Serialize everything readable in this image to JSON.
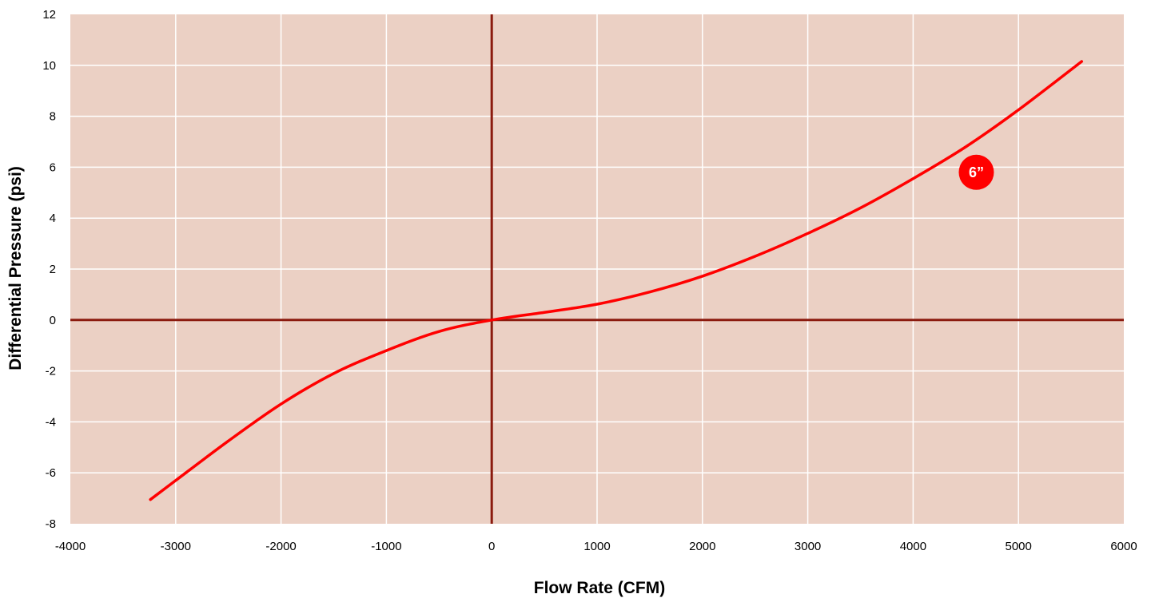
{
  "chart_data": {
    "type": "line",
    "title": "",
    "xlabel": "Flow Rate (CFM)",
    "ylabel": "Differential Pressure (psi)",
    "xlim": [
      -4000,
      6000
    ],
    "ylim": [
      -8,
      12
    ],
    "x_ticks": [
      -4000,
      -3000,
      -2000,
      -1000,
      0,
      1000,
      2000,
      3000,
      4000,
      5000,
      6000
    ],
    "y_ticks": [
      -8,
      -6,
      -4,
      -2,
      0,
      2,
      4,
      6,
      8,
      10,
      12
    ],
    "x_tick_labels": [
      "-4000",
      "-3000",
      "-2000",
      "-1000",
      "0",
      "1000",
      "2000",
      "3000",
      "4000",
      "5000",
      "6000"
    ],
    "y_tick_labels": [
      "-8",
      "-6",
      "-4",
      "-2",
      "0",
      "2",
      "4",
      "6",
      "8",
      "10",
      "12"
    ],
    "grid": true,
    "colors": {
      "plot_background": "#ebd0c4",
      "grid": "#ffffff",
      "zero_axes": "#8b1a0e",
      "series": "#ff0000",
      "badge": "#ff0000"
    },
    "series": [
      {
        "name": "6”",
        "x": [
          -3240,
          -3000,
          -2500,
          -2000,
          -1500,
          -1000,
          -500,
          0,
          500,
          1000,
          1500,
          2000,
          2500,
          3000,
          3500,
          4000,
          4500,
          5000,
          5600
        ],
        "y": [
          -7.05,
          -6.3,
          -4.75,
          -3.3,
          -2.1,
          -1.2,
          -0.45,
          0,
          0.3,
          0.62,
          1.1,
          1.72,
          2.5,
          3.4,
          4.4,
          5.55,
          6.8,
          8.25,
          10.15
        ]
      }
    ],
    "annotations": [
      {
        "text": "6”",
        "x": 4600,
        "y": 5.8
      }
    ]
  }
}
